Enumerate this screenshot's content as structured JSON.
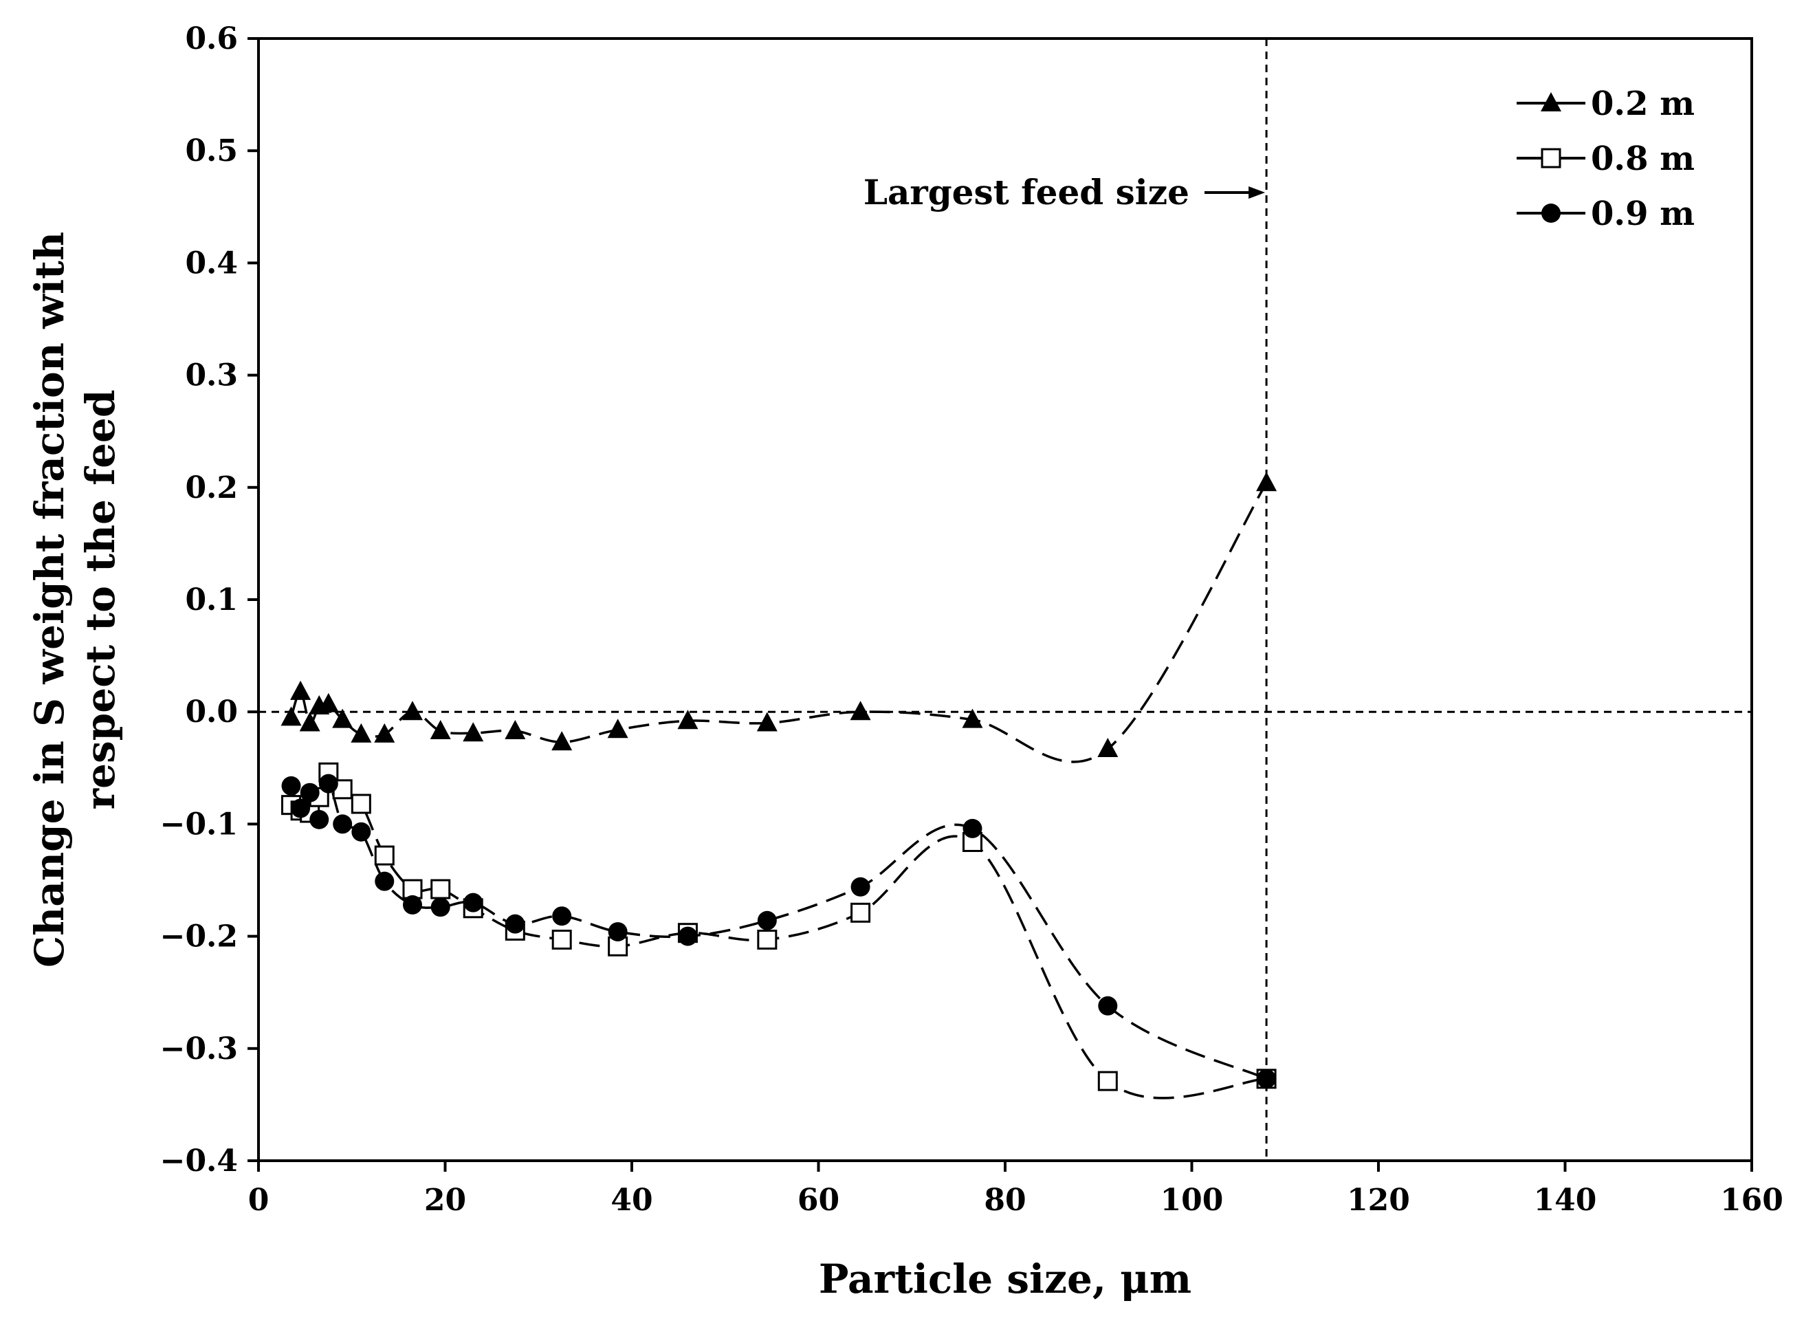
{
  "chart_data": {
    "type": "scatter",
    "title": "",
    "xlabel": "Particle size, μm",
    "ylabel_lines": [
      "Change in S weight fraction with",
      "respect to the feed"
    ],
    "xlim": [
      0,
      160
    ],
    "ylim": [
      -0.4,
      0.6
    ],
    "x_ticks": [
      0,
      20,
      40,
      60,
      80,
      100,
      120,
      140,
      160
    ],
    "y_ticks": [
      -0.4,
      -0.3,
      -0.2,
      -0.1,
      0.0,
      0.1,
      0.2,
      0.3,
      0.4,
      0.5,
      0.6
    ],
    "x_tick_labels": [
      "0",
      "20",
      "40",
      "60",
      "80",
      "100",
      "120",
      "140",
      "160"
    ],
    "y_tick_labels": [
      "−0.4",
      "−0.3",
      "−0.2",
      "−0.1",
      "0.0",
      "0.1",
      "0.2",
      "0.3",
      "0.4",
      "0.5",
      "0.6"
    ],
    "grid": false,
    "legend_position": "top-right",
    "reference_lines": {
      "horizontal_y": 0.0,
      "vertical_x": 108
    },
    "annotation": {
      "text": "Largest feed size",
      "arrow_to_x": 108
    },
    "series": [
      {
        "name": "0.2 m",
        "marker": "triangle-filled",
        "line": "dashed smooth",
        "x": [
          3.5,
          4.5,
          5.5,
          6.5,
          7.5,
          9,
          11,
          13.5,
          16.5,
          19.5,
          23,
          27.5,
          32.5,
          38.5,
          46,
          54.5,
          64.5,
          76.5,
          91,
          108
        ],
        "y": [
          -0.005,
          0.018,
          -0.01,
          0.005,
          0.007,
          -0.007,
          -0.02,
          -0.02,
          0.0,
          -0.017,
          -0.019,
          -0.017,
          -0.027,
          -0.016,
          -0.008,
          -0.01,
          0.0,
          -0.007,
          -0.033,
          0.204
        ]
      },
      {
        "name": "0.8 m",
        "marker": "square-open",
        "line": "dashed smooth",
        "x": [
          3.5,
          4.5,
          5.5,
          6.5,
          7.5,
          9,
          11,
          13.5,
          16.5,
          19.5,
          23,
          27.5,
          32.5,
          38.5,
          46,
          54.5,
          64.5,
          76.5,
          91,
          108
        ],
        "y": [
          -0.083,
          -0.088,
          -0.09,
          -0.076,
          -0.054,
          -0.069,
          -0.082,
          -0.128,
          -0.158,
          -0.158,
          -0.175,
          -0.195,
          -0.203,
          -0.209,
          -0.197,
          -0.203,
          -0.179,
          -0.116,
          -0.329,
          -0.327
        ]
      },
      {
        "name": "0.9 m",
        "marker": "circle-filled",
        "line": "dashed smooth",
        "x": [
          3.5,
          4.5,
          5.5,
          6.5,
          7.5,
          9,
          11,
          13.5,
          16.5,
          19.5,
          23,
          27.5,
          32.5,
          38.5,
          46,
          54.5,
          64.5,
          76.5,
          91,
          108
        ],
        "y": [
          -0.066,
          -0.086,
          -0.072,
          -0.096,
          -0.064,
          -0.1,
          -0.107,
          -0.151,
          -0.172,
          -0.174,
          -0.17,
          -0.189,
          -0.182,
          -0.196,
          -0.2,
          -0.186,
          -0.156,
          -0.104,
          -0.262,
          -0.327
        ]
      }
    ]
  }
}
